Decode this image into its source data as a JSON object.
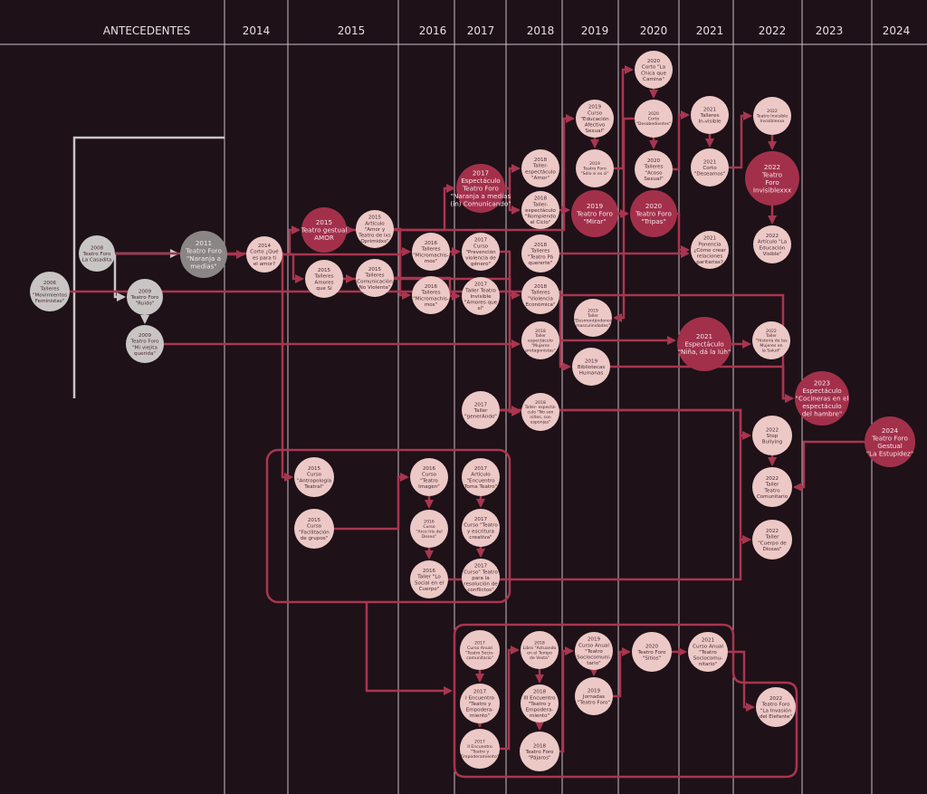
{
  "header": {
    "antecedentes": "ANTECEDENTES",
    "years": [
      "2014",
      "2015",
      "2016",
      "2017",
      "2018",
      "2019",
      "2020",
      "2021",
      "2022",
      "2023",
      "2024"
    ]
  },
  "colors": {
    "background": "#1e1118",
    "line": "#a83650",
    "node_light": "#ecc9c6",
    "node_accent": "#a3304a",
    "node_antecedent": "#c9c5c5",
    "node_antecedent_dark": "#8a8686",
    "divider": "#c9bfc5"
  },
  "nodes": [
    {
      "id": "feministas",
      "kind": "grey",
      "lines": [
        "2006",
        "Talleres",
        "\"Movimientos",
        "Feministas\""
      ]
    },
    {
      "id": "casadita",
      "kind": "grey",
      "lines": [
        "2008",
        "Teatro Foro",
        "La Casadita"
      ]
    },
    {
      "id": "naranja11",
      "kind": "darkgrey",
      "lines": [
        "2011",
        "Teatro Foro",
        "\"Naranja a",
        "medias\""
      ]
    },
    {
      "id": "ruido",
      "kind": "grey",
      "lines": [
        "2009",
        "Teatro Foro",
        "\"Ruido\""
      ]
    },
    {
      "id": "viejita",
      "kind": "grey",
      "lines": [
        "2009",
        "Teatro Foro",
        "\"Mi viejita",
        "querida\""
      ]
    },
    {
      "id": "corto14",
      "kind": "light",
      "lines": [
        "2014",
        "Corto ¿Qué",
        "es para ti",
        "el amor?"
      ]
    },
    {
      "id": "amor15",
      "kind": "accent",
      "lines": [
        "2015",
        "Teatro gestual",
        "AMOR"
      ]
    },
    {
      "id": "articulo15",
      "kind": "light",
      "lines": [
        "2015",
        "Artículo",
        "\"Amor y",
        "Teatro de lxs",
        "Oprimidxs\""
      ]
    },
    {
      "id": "amoresSi15",
      "kind": "light",
      "lines": [
        "2015",
        "Talleres",
        "Amores",
        "que Sí"
      ]
    },
    {
      "id": "cnv15",
      "kind": "light",
      "lines": [
        "2015",
        "Talleres",
        "Comunicación",
        "No Violenta\""
      ]
    },
    {
      "id": "micro16a",
      "kind": "light",
      "lines": [
        "2016",
        "Talleres",
        "\"Micromachis-",
        "mos\""
      ]
    },
    {
      "id": "micro16b",
      "kind": "light",
      "lines": [
        "2016",
        "Talleres",
        "\"Micromachis-",
        "mos\""
      ]
    },
    {
      "id": "prevencion17",
      "kind": "light",
      "lines": [
        "2017",
        "Curso",
        "\"Prevención",
        "violencia de",
        "género\""
      ]
    },
    {
      "id": "invisible17",
      "kind": "light",
      "lines": [
        "2017",
        "Taller Teatro",
        "Invisible",
        "\"Amores que",
        "sí\""
      ]
    },
    {
      "id": "espect17",
      "kind": "accent",
      "lines": [
        "2017",
        "Espectáculo",
        "Teatro Foro",
        "\"Naranja a medias",
        "(in) Comunicando\""
      ]
    },
    {
      "id": "amor18",
      "kind": "light",
      "lines": [
        "2018",
        "Taller-",
        "espectáculo",
        "\"Amor\""
      ]
    },
    {
      "id": "rompiendo18",
      "kind": "light",
      "lines": [
        "2018",
        "Taller-",
        "espectáculo",
        "\"Rompiendo",
        "el Ciclo\""
      ]
    },
    {
      "id": "quererte18",
      "kind": "light",
      "lines": [
        "2018",
        "Talleres",
        "\"Teatro Pá",
        "quererte\""
      ]
    },
    {
      "id": "violEcon18",
      "kind": "light",
      "lines": [
        "2018",
        "Talleres",
        "\"Violencia",
        "Económica\""
      ]
    },
    {
      "id": "mujeres18",
      "kind": "light",
      "lines": [
        "2018",
        "Taller",
        "espectáculo",
        "\"Mujeres",
        "protagonistas\""
      ]
    },
    {
      "id": "esponjas18",
      "kind": "light",
      "lines": [
        "2018",
        "Taller- espectá-",
        "culo \"No son",
        "niñes, son",
        "esponjas\""
      ]
    },
    {
      "id": "educacion19",
      "kind": "light",
      "lines": [
        "2019",
        "Curso",
        "\"Educación",
        "Afectivo",
        "Sexual\""
      ]
    },
    {
      "id": "solo19",
      "kind": "light",
      "lines": [
        "2019",
        "Teatro Foro",
        "\"Sólo si es si\""
      ]
    },
    {
      "id": "mirar19",
      "kind": "accent",
      "lines": [
        "2019",
        "Teatro Foro",
        "\"Mirar\""
      ]
    },
    {
      "id": "desmont19",
      "kind": "light",
      "lines": [
        "2019",
        "Taller",
        "\"Desmontándonos",
        "masculinidades\""
      ]
    },
    {
      "id": "biblio19",
      "kind": "light",
      "lines": [
        "2019",
        "Bibliotecas",
        "Humanas"
      ]
    },
    {
      "id": "chica20",
      "kind": "light",
      "lines": [
        "2020",
        "Corto \"La",
        "Chica que",
        "Camina\""
      ]
    },
    {
      "id": "desob20",
      "kind": "light",
      "lines": [
        "2020",
        "Corto",
        "\"Desobedientes\""
      ]
    },
    {
      "id": "acoso20",
      "kind": "light",
      "lines": [
        "2020",
        "Talleres",
        "\"Acoso",
        "Sexual\""
      ]
    },
    {
      "id": "tripas20",
      "kind": "accent",
      "lines": [
        "2020",
        "Teatro Foro",
        "\"Tripas\""
      ]
    },
    {
      "id": "invis21",
      "kind": "light",
      "lines": [
        "2021",
        "Talleres",
        "In-visible"
      ]
    },
    {
      "id": "deseamos21",
      "kind": "light",
      "lines": [
        "2021",
        "Corto",
        "\"Deseamos\""
      ]
    },
    {
      "id": "ponencia21",
      "kind": "light",
      "lines": [
        "2021",
        "Ponencia",
        "¿Cómo crear",
        "relaciones",
        "paritarias?"
      ]
    },
    {
      "id": "nina21",
      "kind": "accent",
      "lines": [
        "2021",
        "Espectáculo",
        "\"Niña, dá la lúh\""
      ]
    },
    {
      "id": "invisible22",
      "kind": "light",
      "lines": [
        "2022",
        "Teatro Invisible",
        "Invisiblexxx"
      ]
    },
    {
      "id": "foroInv22",
      "kind": "accent",
      "lines": [
        "2022",
        "Teatro",
        "Foro",
        "Invisiblexxx"
      ]
    },
    {
      "id": "articulo22",
      "kind": "light",
      "lines": [
        "2022",
        "Artículo \"La",
        "Educación",
        "Visible\""
      ]
    },
    {
      "id": "historia22",
      "kind": "light",
      "lines": [
        "2022",
        "Taller",
        "\"Historia de las",
        "Mujeres en",
        "la Salud\""
      ]
    },
    {
      "id": "cocineras23",
      "kind": "accent",
      "lines": [
        "2023",
        "Espectáculo",
        "\"Cocineras en el",
        "espectáculo",
        "del hambre\""
      ]
    },
    {
      "id": "estupidez24",
      "kind": "accent",
      "lines": [
        "2024",
        "Teatro Foro",
        "Gestual",
        "\"La Estupidez\""
      ]
    },
    {
      "id": "bullying22",
      "kind": "light",
      "lines": [
        "2022",
        "Stop",
        "Bullying"
      ]
    },
    {
      "id": "comunitario22",
      "kind": "light",
      "lines": [
        "2022",
        "Taller",
        "Teatro",
        "Comunitario"
      ]
    },
    {
      "id": "diosas22",
      "kind": "light",
      "lines": [
        "2022",
        "Taller",
        "\"Cuerpo de",
        "Diosas\""
      ]
    },
    {
      "id": "generando17",
      "kind": "light",
      "lines": [
        "2017",
        "Taller",
        "\"generAndo\""
      ]
    },
    {
      "id": "antropologia15",
      "kind": "light",
      "lines": [
        "2015",
        "Curso",
        "\"Antropología",
        "Teatral\""
      ]
    },
    {
      "id": "facilitacion15",
      "kind": "light",
      "lines": [
        "2015",
        "Curso",
        "\"Facilitación",
        "de grupos\""
      ]
    },
    {
      "id": "imagen16",
      "kind": "light",
      "lines": [
        "2016",
        "Curso",
        "\"Teatro",
        "Imagen\""
      ]
    },
    {
      "id": "arcoiris16",
      "kind": "light",
      "lines": [
        "2016",
        "Curso",
        "\"Arco Iris del",
        "Deseo\""
      ]
    },
    {
      "id": "social16",
      "kind": "light",
      "lines": [
        "2016",
        "Taller \"Lo",
        "Social en el",
        "Cuerpo\""
      ]
    },
    {
      "id": "toma17",
      "kind": "light",
      "lines": [
        "2017",
        "Artículo",
        "\"Encuentro",
        "Toma Teatro\""
      ]
    },
    {
      "id": "escritura17",
      "kind": "light",
      "lines": [
        "2017",
        "Curso \"Teatro",
        "y escritura",
        "creativa\""
      ]
    },
    {
      "id": "conflictos17",
      "kind": "light",
      "lines": [
        "2017",
        "Curso\" Teatro",
        "para la",
        "resolución de",
        "conflictos\""
      ]
    },
    {
      "id": "anual17",
      "kind": "light",
      "lines": [
        "2017",
        "Curso Anual",
        "\"Teatro Socio-",
        "comunitario\""
      ]
    },
    {
      "id": "enc1",
      "kind": "light",
      "lines": [
        "2017",
        "I Encuentro",
        "\"Teatro y",
        "Empodera-",
        "miento\""
      ]
    },
    {
      "id": "enc2",
      "kind": "light",
      "lines": [
        "2017",
        "II Encuentro",
        "\"Teatro y",
        "Empoderamiento\""
      ]
    },
    {
      "id": "libro18",
      "kind": "light",
      "lines": [
        "2018",
        "Libro \"Actuando",
        "en el Tempo",
        "de Vesta\""
      ]
    },
    {
      "id": "enc3",
      "kind": "light",
      "lines": [
        "2018",
        "III Encuentro",
        "\"Teatro y",
        "Empodera-",
        "miento\""
      ]
    },
    {
      "id": "pajaros18",
      "kind": "light",
      "lines": [
        "2018",
        "Teatro Foro",
        "\"Pájaros\""
      ]
    },
    {
      "id": "anual19",
      "kind": "light",
      "lines": [
        "2019",
        "Curso Anual",
        "\"Teatro",
        "Sociocomuni-",
        "tario\""
      ]
    },
    {
      "id": "jornadas19",
      "kind": "light",
      "lines": [
        "2019",
        "Jornadas",
        "\"Teatro Foro\""
      ]
    },
    {
      "id": "sitios20",
      "kind": "light",
      "lines": [
        "2020",
        "Teatro Foro",
        "\"Sitios\""
      ]
    },
    {
      "id": "anual21",
      "kind": "light",
      "lines": [
        "2021",
        "Curso Anual",
        "\"Teatro",
        "Sociocomu-",
        "nitario\""
      ]
    },
    {
      "id": "elefante22",
      "kind": "light",
      "lines": [
        "2022",
        "Teatro Foro",
        "\"La Invasión",
        "del Elefante\""
      ]
    }
  ],
  "edges": [
    [
      "casadita",
      "naranja11",
      "grey"
    ],
    [
      "casadita",
      "ruido",
      "grey"
    ],
    [
      "ruido",
      "viejita",
      "grey"
    ],
    [
      "naranja11",
      "corto14"
    ],
    [
      "corto14",
      "amor15"
    ],
    [
      "corto14",
      "amoresSi15"
    ],
    [
      "amor15",
      "articulo15"
    ],
    [
      "amoresSi15",
      "cnv15"
    ],
    [
      "articulo15",
      "micro16a"
    ],
    [
      "cnv15",
      "micro16a"
    ],
    [
      "micro16a",
      "prevencion17"
    ],
    [
      "corto14",
      "micro16b"
    ],
    [
      "prevencion17",
      "violEcon18"
    ],
    [
      "amor15",
      "espect17"
    ],
    [
      "espect17",
      "amor18"
    ],
    [
      "espect17",
      "rompiendo18"
    ],
    [
      "rompiendo18",
      "mirar19"
    ],
    [
      "mirar19",
      "tripas20"
    ],
    [
      "educacion19",
      "solo19"
    ],
    [
      "solo19",
      "chica20"
    ],
    [
      "chica20",
      "desob20"
    ],
    [
      "desob20",
      "acoso20"
    ],
    [
      "acoso20",
      "invis21"
    ],
    [
      "invis21",
      "deseamos21"
    ],
    [
      "deseamos21",
      "invisible22"
    ],
    [
      "invisible22",
      "foroInv22"
    ],
    [
      "foroInv22",
      "articulo22"
    ],
    [
      "tripas20",
      "ponencia21"
    ],
    [
      "quererte18",
      "ponencia21"
    ],
    [
      "violEcon18",
      "cocineras23"
    ],
    [
      "mujeres18",
      "nina21"
    ],
    [
      "nina21",
      "historia22"
    ],
    [
      "biblio19",
      "cocineras23"
    ],
    [
      "viejita",
      "mujeres18"
    ],
    [
      "generando17",
      "esponjas18"
    ],
    [
      "generando17",
      "bullying22"
    ],
    [
      "bullying22",
      "comunitario22"
    ],
    [
      "generando17",
      "diosas22"
    ],
    [
      "estupidez24",
      "comunitario22"
    ],
    [
      "social16",
      "diosas22"
    ],
    [
      "feministas",
      "biblio19"
    ],
    [
      "desob20",
      "desmont19"
    ],
    [
      "casadita",
      "antropologia15"
    ],
    [
      "facilitacion15",
      "imagen16"
    ],
    [
      "imagen16",
      "arcoiris16"
    ],
    [
      "arcoiris16",
      "social16"
    ],
    [
      "toma17",
      "escritura17"
    ],
    [
      "escritura17",
      "conflictos17"
    ],
    [
      "anual17",
      "enc1"
    ],
    [
      "enc1",
      "enc2"
    ],
    [
      "enc2",
      "libro18"
    ],
    [
      "libro18",
      "enc3"
    ],
    [
      "enc3",
      "pajaros18"
    ],
    [
      "pajaros18",
      "anual19"
    ],
    [
      "anual19",
      "jornadas19"
    ],
    [
      "jornadas19",
      "sitios20"
    ],
    [
      "sitios20",
      "anual21"
    ],
    [
      "anual21",
      "elefante22"
    ],
    [
      "cnv15",
      "invisible17"
    ],
    [
      "amor15",
      "educacion19"
    ],
    [
      "amoresSi15",
      "esponjas18"
    ]
  ]
}
